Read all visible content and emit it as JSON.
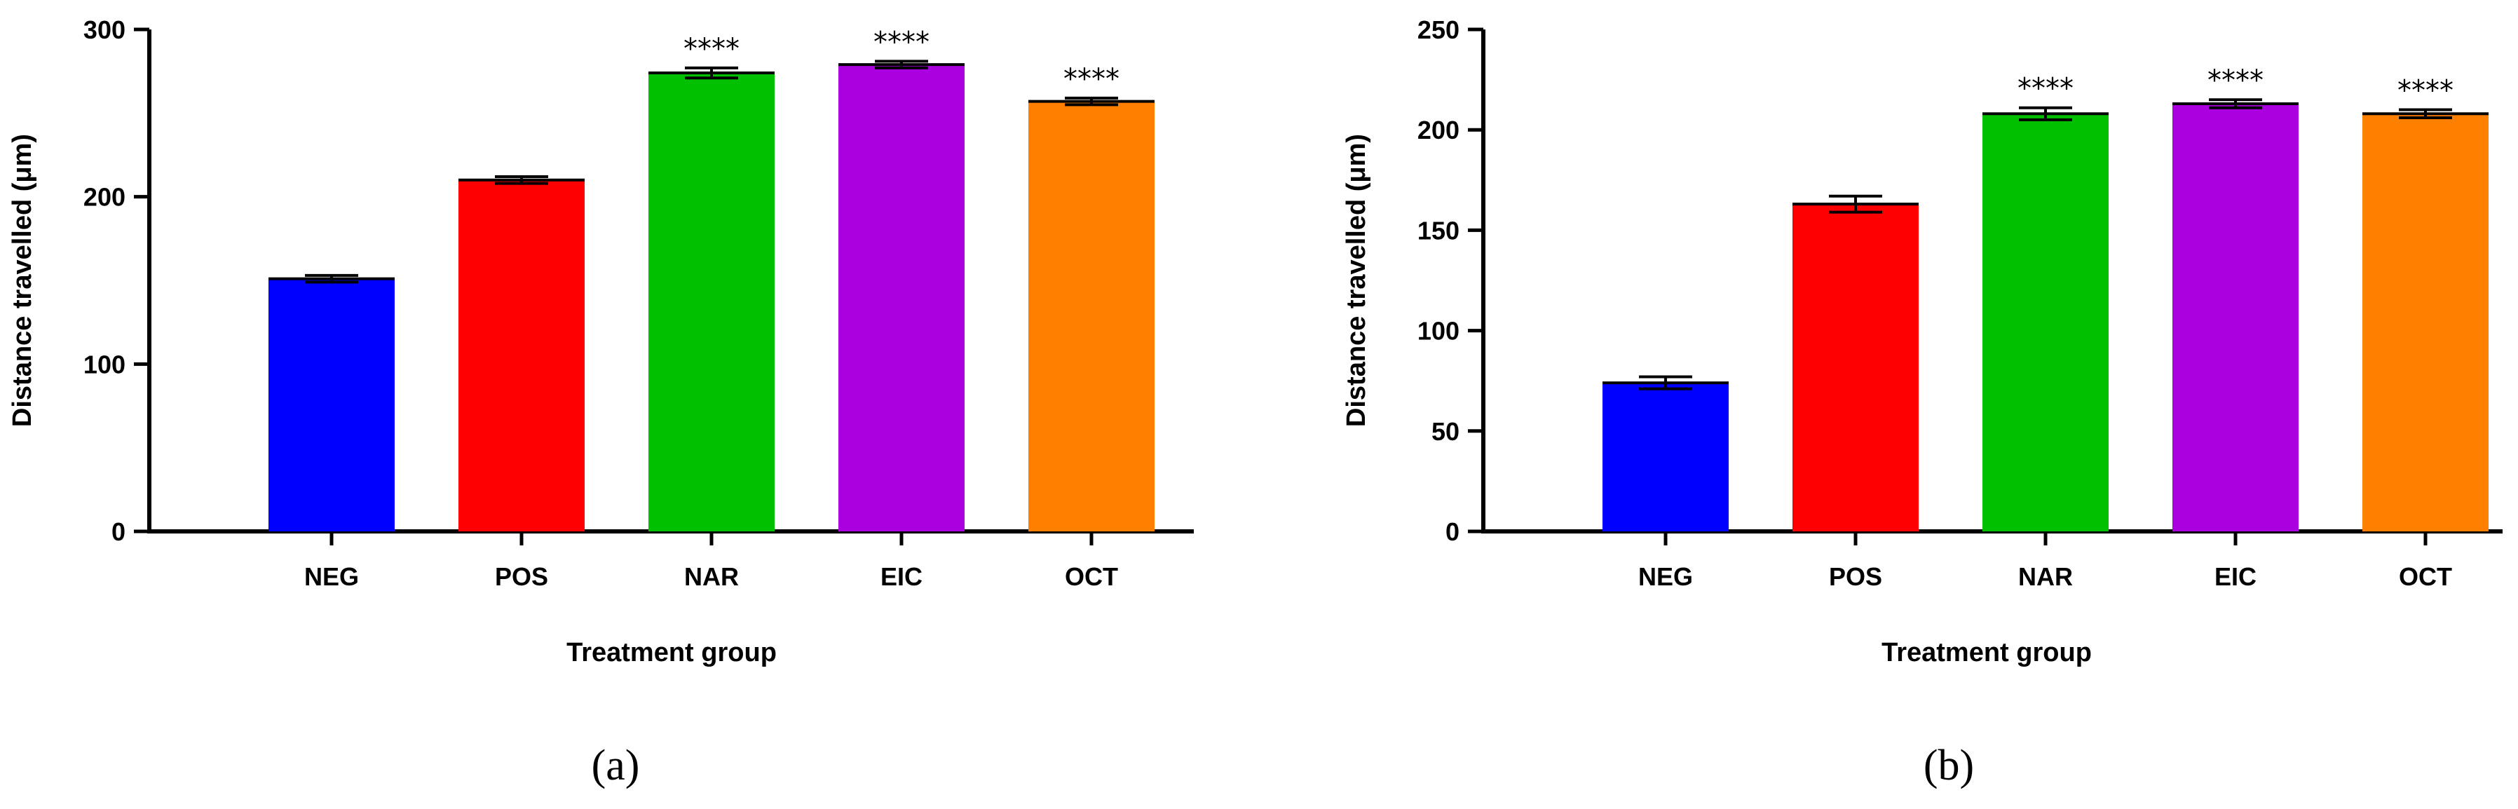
{
  "chart_data": [
    {
      "type": "bar",
      "panel_label": "(a)",
      "xlabel": "Treatment group",
      "ylabel": "Distance travelled (μm)",
      "categories": [
        "NEG",
        "POS",
        "NAR",
        "EIC",
        "OCT"
      ],
      "values": [
        151,
        210,
        274,
        279,
        257
      ],
      "error": [
        2,
        2,
        3,
        2,
        2
      ],
      "significance": [
        "",
        "",
        "****",
        "****",
        "****"
      ],
      "colors": [
        "#0000FF",
        "#FF0000",
        "#00C000",
        "#AA00E0",
        "#FF8000"
      ],
      "ylim": [
        0,
        300
      ],
      "yticks": [
        0,
        100,
        200,
        300
      ],
      "grid": false
    },
    {
      "type": "bar",
      "panel_label": "(b)",
      "xlabel": "Treatment group",
      "ylabel": "Distance travelled (μm)",
      "categories": [
        "NEG",
        "POS",
        "NAR",
        "EIC",
        "OCT"
      ],
      "values": [
        74,
        163,
        208,
        213,
        208
      ],
      "error": [
        3,
        4,
        3,
        2,
        2
      ],
      "significance": [
        "",
        "",
        "****",
        "****",
        "****"
      ],
      "colors": [
        "#0000FF",
        "#FF0000",
        "#00C000",
        "#AA00E0",
        "#FF8000"
      ],
      "ylim": [
        0,
        250
      ],
      "yticks": [
        0,
        50,
        100,
        150,
        200,
        250
      ],
      "grid": false
    }
  ]
}
